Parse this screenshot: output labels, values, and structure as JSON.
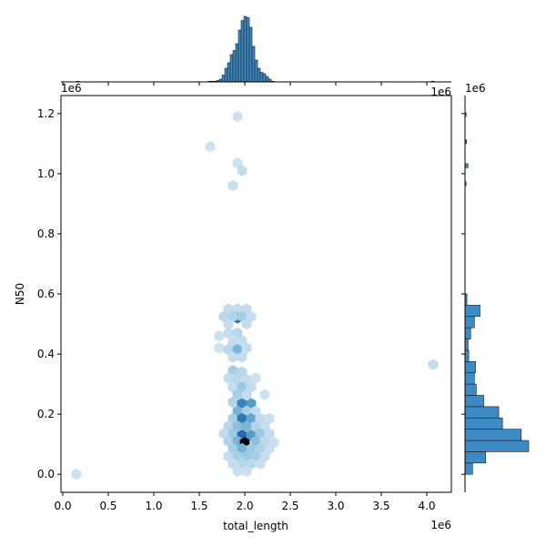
{
  "chart_data": {
    "type": "hexbin-jointplot",
    "xlabel": "total_length",
    "ylabel": "N50",
    "x_offset_label": "1e6",
    "y_offset_label": "1e6",
    "xlim": [
      -0.02,
      4.27
    ],
    "ylim": [
      -0.06,
      1.26
    ],
    "x_ticks": [
      0.0,
      0.5,
      1.0,
      1.5,
      2.0,
      2.5,
      3.0,
      3.5,
      4.0
    ],
    "x_tick_labels": [
      "0.0",
      "0.5",
      "1.0",
      "1.5",
      "2.0",
      "2.5",
      "3.0",
      "3.5",
      "4.0"
    ],
    "y_ticks": [
      0.0,
      0.2,
      0.4,
      0.6,
      0.8,
      1.0,
      1.2
    ],
    "y_tick_labels": [
      "0.0",
      "0.2",
      "0.4",
      "0.6",
      "0.8",
      "1.0",
      "1.2"
    ],
    "colors": {
      "bar": "#3d8ac4",
      "edge": "#1a1a1a",
      "hex_max": "#000000"
    },
    "hexbins": [
      {
        "x": 0.15,
        "y": 0.0,
        "c": 0.1
      },
      {
        "x": 1.62,
        "y": 1.09,
        "c": 0.1
      },
      {
        "x": 1.92,
        "y": 1.19,
        "c": 0.1
      },
      {
        "x": 1.92,
        "y": 1.035,
        "c": 0.1
      },
      {
        "x": 1.97,
        "y": 1.01,
        "c": 0.15
      },
      {
        "x": 1.87,
        "y": 0.96,
        "c": 0.12
      },
      {
        "x": 4.07,
        "y": 0.365,
        "c": 0.15
      },
      {
        "x": 1.82,
        "y": 0.55,
        "c": 0.15
      },
      {
        "x": 1.92,
        "y": 0.55,
        "c": 0.15
      },
      {
        "x": 2.02,
        "y": 0.55,
        "c": 0.15
      },
      {
        "x": 1.77,
        "y": 0.525,
        "c": 0.2
      },
      {
        "x": 1.92,
        "y": 0.52,
        "c": 0.7
      },
      {
        "x": 1.87,
        "y": 0.525,
        "c": 0.25
      },
      {
        "x": 1.97,
        "y": 0.525,
        "c": 0.3
      },
      {
        "x": 2.07,
        "y": 0.525,
        "c": 0.15
      },
      {
        "x": 1.82,
        "y": 0.5,
        "c": 0.15
      },
      {
        "x": 2.02,
        "y": 0.5,
        "c": 0.15
      },
      {
        "x": 1.72,
        "y": 0.46,
        "c": 0.1
      },
      {
        "x": 1.82,
        "y": 0.47,
        "c": 0.15
      },
      {
        "x": 1.92,
        "y": 0.47,
        "c": 0.2
      },
      {
        "x": 1.87,
        "y": 0.44,
        "c": 0.15
      },
      {
        "x": 1.97,
        "y": 0.445,
        "c": 0.15
      },
      {
        "x": 1.72,
        "y": 0.42,
        "c": 0.1
      },
      {
        "x": 1.82,
        "y": 0.415,
        "c": 0.2
      },
      {
        "x": 1.92,
        "y": 0.415,
        "c": 0.45
      },
      {
        "x": 2.02,
        "y": 0.42,
        "c": 0.15
      },
      {
        "x": 1.87,
        "y": 0.39,
        "c": 0.15
      },
      {
        "x": 1.97,
        "y": 0.39,
        "c": 0.15
      },
      {
        "x": 1.87,
        "y": 0.345,
        "c": 0.3
      },
      {
        "x": 1.97,
        "y": 0.34,
        "c": 0.2
      },
      {
        "x": 1.82,
        "y": 0.32,
        "c": 0.15
      },
      {
        "x": 1.92,
        "y": 0.315,
        "c": 0.2
      },
      {
        "x": 2.02,
        "y": 0.315,
        "c": 0.15
      },
      {
        "x": 2.12,
        "y": 0.32,
        "c": 0.1
      },
      {
        "x": 1.87,
        "y": 0.29,
        "c": 0.15
      },
      {
        "x": 1.97,
        "y": 0.29,
        "c": 0.35
      },
      {
        "x": 2.07,
        "y": 0.29,
        "c": 0.15
      },
      {
        "x": 1.92,
        "y": 0.265,
        "c": 0.3
      },
      {
        "x": 2.02,
        "y": 0.265,
        "c": 0.15
      },
      {
        "x": 2.22,
        "y": 0.265,
        "c": 0.1
      },
      {
        "x": 1.87,
        "y": 0.24,
        "c": 0.25
      },
      {
        "x": 1.97,
        "y": 0.235,
        "c": 0.65
      },
      {
        "x": 2.07,
        "y": 0.235,
        "c": 0.55
      },
      {
        "x": 1.92,
        "y": 0.21,
        "c": 0.45
      },
      {
        "x": 2.02,
        "y": 0.21,
        "c": 0.3
      },
      {
        "x": 2.12,
        "y": 0.21,
        "c": 0.15
      },
      {
        "x": 1.87,
        "y": 0.185,
        "c": 0.3
      },
      {
        "x": 1.97,
        "y": 0.185,
        "c": 0.7
      },
      {
        "x": 2.07,
        "y": 0.185,
        "c": 0.5
      },
      {
        "x": 2.17,
        "y": 0.185,
        "c": 0.15
      },
      {
        "x": 2.27,
        "y": 0.185,
        "c": 0.12
      },
      {
        "x": 1.82,
        "y": 0.16,
        "c": 0.2
      },
      {
        "x": 1.92,
        "y": 0.16,
        "c": 0.4
      },
      {
        "x": 2.02,
        "y": 0.16,
        "c": 0.45
      },
      {
        "x": 2.12,
        "y": 0.16,
        "c": 0.25
      },
      {
        "x": 2.22,
        "y": 0.16,
        "c": 0.15
      },
      {
        "x": 1.77,
        "y": 0.135,
        "c": 0.15
      },
      {
        "x": 1.87,
        "y": 0.135,
        "c": 0.35
      },
      {
        "x": 1.97,
        "y": 0.13,
        "c": 0.75
      },
      {
        "x": 2.07,
        "y": 0.13,
        "c": 0.55
      },
      {
        "x": 2.17,
        "y": 0.135,
        "c": 0.35
      },
      {
        "x": 2.27,
        "y": 0.135,
        "c": 0.15
      },
      {
        "x": 1.82,
        "y": 0.11,
        "c": 0.25
      },
      {
        "x": 1.92,
        "y": 0.11,
        "c": 0.45
      },
      {
        "x": 2.0,
        "y": 0.105,
        "c": 1.0
      },
      {
        "x": 2.12,
        "y": 0.11,
        "c": 0.4
      },
      {
        "x": 2.22,
        "y": 0.11,
        "c": 0.2
      },
      {
        "x": 2.32,
        "y": 0.105,
        "c": 0.12
      },
      {
        "x": 1.87,
        "y": 0.085,
        "c": 0.3
      },
      {
        "x": 1.97,
        "y": 0.085,
        "c": 0.45
      },
      {
        "x": 2.07,
        "y": 0.085,
        "c": 0.35
      },
      {
        "x": 2.17,
        "y": 0.085,
        "c": 0.25
      },
      {
        "x": 2.27,
        "y": 0.085,
        "c": 0.12
      },
      {
        "x": 1.82,
        "y": 0.06,
        "c": 0.15
      },
      {
        "x": 1.92,
        "y": 0.06,
        "c": 0.3
      },
      {
        "x": 2.02,
        "y": 0.06,
        "c": 0.35
      },
      {
        "x": 2.12,
        "y": 0.06,
        "c": 0.3
      },
      {
        "x": 2.22,
        "y": 0.06,
        "c": 0.15
      },
      {
        "x": 1.87,
        "y": 0.035,
        "c": 0.15
      },
      {
        "x": 1.97,
        "y": 0.035,
        "c": 0.2
      },
      {
        "x": 2.07,
        "y": 0.035,
        "c": 0.2
      },
      {
        "x": 2.17,
        "y": 0.035,
        "c": 0.12
      },
      {
        "x": 1.92,
        "y": 0.01,
        "c": 0.12
      },
      {
        "x": 2.02,
        "y": 0.01,
        "c": 0.12
      }
    ],
    "x_marginal": {
      "bin_edges_start": 1.6,
      "bin_width": 0.03,
      "counts": [
        0.5,
        0.5,
        0.5,
        1,
        2,
        5,
        10,
        14,
        20,
        23,
        28,
        38,
        45,
        48,
        47,
        40,
        26,
        16,
        10,
        7,
        6,
        4,
        2,
        0.5
      ],
      "extra_bins": [
        {
          "x": 0.15,
          "count": 0.5
        },
        {
          "x": 4.05,
          "count": 0.5
        }
      ]
    },
    "y_marginal": {
      "bin_edges_start": 0.0,
      "bin_width": 0.0375,
      "counts": [
        2,
        5.5,
        17,
        15,
        10,
        9,
        5,
        3,
        2.5,
        2.8,
        1,
        0.8,
        1.5,
        2.5,
        4,
        0.5
      ],
      "extra_bins": [
        {
          "y": 0.96,
          "count": 0.3
        },
        {
          "y": 1.02,
          "count": 0.8
        },
        {
          "y": 1.1,
          "count": 0.4
        },
        {
          "y": 1.19,
          "count": 0.3
        }
      ]
    }
  }
}
